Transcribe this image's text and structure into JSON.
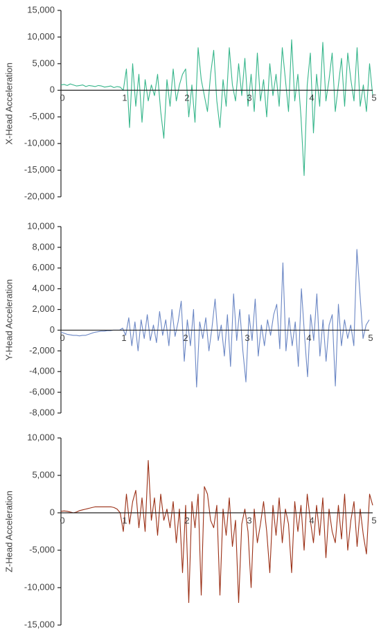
{
  "chart_data": [
    {
      "type": "line",
      "ylabel": "X-Head Acceleration",
      "color": "#35b58a",
      "xlim": [
        0,
        5
      ],
      "xticks": [
        0,
        1,
        2,
        3,
        4,
        5
      ],
      "ylim": [
        -20000,
        15000
      ],
      "yticks": [
        {
          "value": -20000,
          "label": "-20,000"
        },
        {
          "value": -15000,
          "label": "-15,000"
        },
        {
          "value": -10000,
          "label": "-10,000"
        },
        {
          "value": -5000,
          "label": "-5,000"
        },
        0,
        {
          "value": 5000,
          "label": "5,000"
        },
        {
          "value": 10000,
          "label": "10,000"
        },
        {
          "value": 15000,
          "label": "15,000"
        }
      ],
      "x": [
        0,
        0.05,
        0.1,
        0.15,
        0.2,
        0.25,
        0.3,
        0.35,
        0.4,
        0.45,
        0.5,
        0.55,
        0.6,
        0.65,
        0.7,
        0.75,
        0.8,
        0.85,
        0.9,
        0.95,
        1,
        1.05,
        1.1,
        1.15,
        1.2,
        1.25,
        1.3,
        1.35,
        1.4,
        1.45,
        1.5,
        1.55,
        1.6,
        1.65,
        1.7,
        1.75,
        1.8,
        1.85,
        1.9,
        1.95,
        2,
        2.05,
        2.1,
        2.15,
        2.2,
        2.25,
        2.3,
        2.35,
        2.4,
        2.45,
        2.5,
        2.55,
        2.6,
        2.65,
        2.7,
        2.75,
        2.8,
        2.85,
        2.9,
        2.95,
        3,
        3.05,
        3.1,
        3.15,
        3.2,
        3.25,
        3.3,
        3.35,
        3.4,
        3.45,
        3.5,
        3.55,
        3.6,
        3.65,
        3.7,
        3.75,
        3.8,
        3.85,
        3.9,
        3.95,
        4,
        4.05,
        4.1,
        4.15,
        4.2,
        4.25,
        4.3,
        4.35,
        4.4,
        4.45,
        4.5,
        4.55,
        4.6,
        4.65,
        4.7,
        4.75,
        4.8,
        4.85,
        4.9,
        4.95,
        5
      ],
      "values": [
        1000,
        1100,
        900,
        1200,
        1000,
        800,
        900,
        1000,
        700,
        900,
        800,
        700,
        900,
        800,
        600,
        700,
        800,
        500,
        700,
        600,
        0,
        4000,
        -7000,
        5000,
        -3000,
        3000,
        -6000,
        2000,
        -2000,
        1000,
        -1000,
        3000,
        -4000,
        -9000,
        2000,
        -3000,
        4000,
        -2000,
        1000,
        3000,
        4000,
        -5000,
        1000,
        -6000,
        8000,
        2000,
        -1000,
        -4000,
        3000,
        7500,
        -2000,
        -7000,
        2000,
        -3000,
        8000,
        1000,
        -2000,
        5000,
        -1000,
        6000,
        -3000,
        3000,
        -4000,
        7000,
        -2000,
        2000,
        -5000,
        5000,
        -1000,
        3000,
        -3000,
        8000,
        2000,
        -4000,
        9500,
        -2000,
        3000,
        -5000,
        -16000,
        1000,
        7000,
        -8000,
        3000,
        -3000,
        9000,
        -2000,
        2000,
        7000,
        -4000,
        1000,
        6000,
        -3000,
        7000,
        2000,
        -2000,
        8000,
        -3000,
        1000,
        -4000,
        5000,
        -1000
      ]
    },
    {
      "type": "line",
      "ylabel": "Y-Head Acceleration",
      "color": "#6a86c4",
      "xlim": [
        0,
        5
      ],
      "xticks": [
        0,
        1,
        2,
        3,
        4,
        5
      ],
      "ylim": [
        -8000,
        10000
      ],
      "yticks": [
        {
          "value": -8000,
          "label": "-8,000"
        },
        {
          "value": -6000,
          "label": "-6,000"
        },
        {
          "value": -4000,
          "label": "-4,000"
        },
        {
          "value": -2000,
          "label": "-2,000"
        },
        0,
        {
          "value": 2000,
          "label": "2,000"
        },
        {
          "value": 4000,
          "label": "4,000"
        },
        {
          "value": 6000,
          "label": "6,000"
        },
        {
          "value": 8000,
          "label": "8,000"
        },
        {
          "value": 10000,
          "label": "10,000"
        }
      ],
      "x": [
        0,
        0.05,
        0.1,
        0.15,
        0.2,
        0.25,
        0.3,
        0.35,
        0.4,
        0.45,
        0.5,
        0.55,
        0.6,
        0.65,
        0.7,
        0.75,
        0.8,
        0.85,
        0.9,
        0.95,
        1,
        1.05,
        1.1,
        1.15,
        1.2,
        1.25,
        1.3,
        1.35,
        1.4,
        1.45,
        1.5,
        1.55,
        1.6,
        1.65,
        1.7,
        1.75,
        1.8,
        1.85,
        1.9,
        1.95,
        2,
        2.05,
        2.1,
        2.15,
        2.2,
        2.25,
        2.3,
        2.35,
        2.4,
        2.45,
        2.5,
        2.55,
        2.6,
        2.65,
        2.7,
        2.75,
        2.8,
        2.85,
        2.9,
        2.95,
        3,
        3.05,
        3.1,
        3.15,
        3.2,
        3.25,
        3.3,
        3.35,
        3.4,
        3.45,
        3.5,
        3.55,
        3.6,
        3.65,
        3.7,
        3.75,
        3.8,
        3.85,
        3.9,
        3.95,
        4,
        4.05,
        4.1,
        4.15,
        4.2,
        4.25,
        4.3,
        4.35,
        4.4,
        4.45,
        4.5,
        4.55,
        4.6,
        4.65,
        4.7,
        4.75,
        4.8,
        4.85,
        4.9,
        4.95,
        5
      ],
      "values": [
        -200,
        -300,
        -400,
        -450,
        -500,
        -500,
        -550,
        -500,
        -500,
        -400,
        -300,
        -200,
        -150,
        -100,
        -100,
        -50,
        -50,
        0,
        0,
        0,
        200,
        -500,
        1200,
        -1500,
        800,
        -2000,
        1000,
        -800,
        1500,
        -1000,
        500,
        -1200,
        1800,
        -500,
        1000,
        -1500,
        2000,
        -600,
        800,
        2800,
        -3000,
        1000,
        -1500,
        2000,
        -5500,
        800,
        -800,
        1200,
        -2000,
        300,
        3000,
        -1000,
        500,
        -2500,
        1500,
        -3500,
        3500,
        -1000,
        2000,
        -2000,
        -5000,
        1500,
        -1000,
        3000,
        -2500,
        500,
        -1500,
        1000,
        -500,
        1500,
        2500,
        -1800,
        6500,
        -2000,
        1200,
        -1500,
        800,
        -3500,
        4000,
        -500,
        -4500,
        1500,
        -1000,
        3500,
        -2500,
        1000,
        -3000,
        500,
        1500,
        -5400,
        2500,
        -1500,
        1000,
        -800,
        500,
        -1500,
        7800,
        3500,
        -800,
        500,
        1000
      ]
    },
    {
      "type": "line",
      "ylabel": "Z-Head Acceleration",
      "color": "#9a2e14",
      "xlim": [
        0,
        5
      ],
      "xticks": [
        0,
        1,
        2,
        3,
        4,
        5
      ],
      "ylim": [
        -15000,
        10000
      ],
      "yticks": [
        {
          "value": -15000,
          "label": "-15,000"
        },
        {
          "value": -10000,
          "label": "-10,000"
        },
        {
          "value": -5000,
          "label": "-5,000"
        },
        0,
        {
          "value": 5000,
          "label": "5,000"
        },
        {
          "value": 10000,
          "label": "10,000"
        }
      ],
      "x": [
        0,
        0.05,
        0.1,
        0.15,
        0.2,
        0.25,
        0.3,
        0.35,
        0.4,
        0.45,
        0.5,
        0.55,
        0.6,
        0.65,
        0.7,
        0.75,
        0.8,
        0.85,
        0.9,
        0.95,
        1,
        1.05,
        1.1,
        1.15,
        1.2,
        1.25,
        1.3,
        1.35,
        1.4,
        1.45,
        1.5,
        1.55,
        1.6,
        1.65,
        1.7,
        1.75,
        1.8,
        1.85,
        1.9,
        1.95,
        2,
        2.05,
        2.1,
        2.15,
        2.2,
        2.25,
        2.3,
        2.35,
        2.4,
        2.45,
        2.5,
        2.55,
        2.6,
        2.65,
        2.7,
        2.75,
        2.8,
        2.85,
        2.9,
        2.95,
        3,
        3.05,
        3.1,
        3.15,
        3.2,
        3.25,
        3.3,
        3.35,
        3.4,
        3.45,
        3.5,
        3.55,
        3.6,
        3.65,
        3.7,
        3.75,
        3.8,
        3.85,
        3.9,
        3.95,
        4,
        4.05,
        4.1,
        4.15,
        4.2,
        4.25,
        4.3,
        4.35,
        4.4,
        4.45,
        4.5,
        4.55,
        4.6,
        4.65,
        4.7,
        4.75,
        4.8,
        4.85,
        4.9,
        4.95,
        5
      ],
      "values": [
        200,
        250,
        200,
        100,
        0,
        100,
        300,
        400,
        500,
        600,
        700,
        800,
        800,
        800,
        800,
        800,
        800,
        700,
        500,
        0,
        -2500,
        2500,
        -1500,
        1500,
        3000,
        -2000,
        2000,
        -2500,
        7000,
        -1000,
        2000,
        -3000,
        2500,
        -1000,
        500,
        -2000,
        1500,
        -4000,
        500,
        -8000,
        1000,
        -12000,
        1500,
        -2000,
        2500,
        -11000,
        3500,
        2500,
        -1000,
        -2000,
        1000,
        -11000,
        500,
        -3000,
        2000,
        -4500,
        -1000,
        -12000,
        -1500,
        500,
        -2500,
        -10000,
        500,
        -4000,
        -1500,
        1500,
        -2500,
        -8000,
        1000,
        -3000,
        2000,
        -4000,
        500,
        -1500,
        -8000,
        1500,
        -2500,
        1000,
        -5000,
        2500,
        -1000,
        -4000,
        1000,
        -3000,
        2000,
        -6000,
        500,
        -2500,
        -4000,
        1000,
        -3500,
        2500,
        -5000,
        -1000,
        1500,
        -4500,
        500,
        -3000,
        -5500,
        2500,
        1000
      ]
    }
  ]
}
